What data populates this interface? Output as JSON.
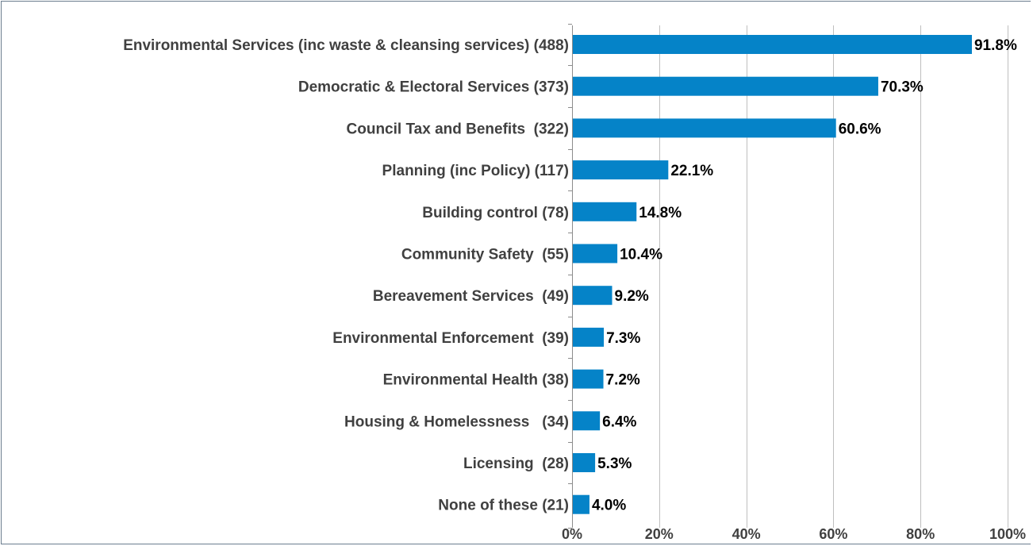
{
  "chart_data": {
    "type": "bar",
    "orientation": "horizontal",
    "categories": [
      "Environmental Services (inc waste & cleansing services) (488)",
      "Democratic & Electoral Services (373)",
      "Council Tax and Benefits  (322)",
      "Planning (inc Policy) (117)",
      "Building control (78)",
      "Community Safety  (55)",
      "Bereavement Services  (49)",
      "Environmental Enforcement  (39)",
      "Environmental Health (38)",
      "Housing & Homelessness   (34)",
      "Licensing  (28)",
      "None of these (21)"
    ],
    "values": [
      91.8,
      70.3,
      60.6,
      22.1,
      14.8,
      10.4,
      9.2,
      7.3,
      7.2,
      6.4,
      5.3,
      4.0
    ],
    "data_labels": [
      "91.8%",
      "70.3%",
      "60.6%",
      "22.1%",
      "14.8%",
      "10.4%",
      "9.2%",
      "7.3%",
      "7.2%",
      "6.4%",
      "5.3%",
      "4.0%"
    ],
    "xlim": [
      0,
      100
    ],
    "xticks": [
      0,
      20,
      40,
      60,
      80,
      100
    ],
    "xtick_labels": [
      "0%",
      "20%",
      "40%",
      "60%",
      "80%",
      "100%"
    ],
    "title": "",
    "xlabel": "",
    "ylabel": "",
    "grid": "vertical",
    "bar_color": "#0583C8",
    "grid_color": "#BFBFBF"
  }
}
